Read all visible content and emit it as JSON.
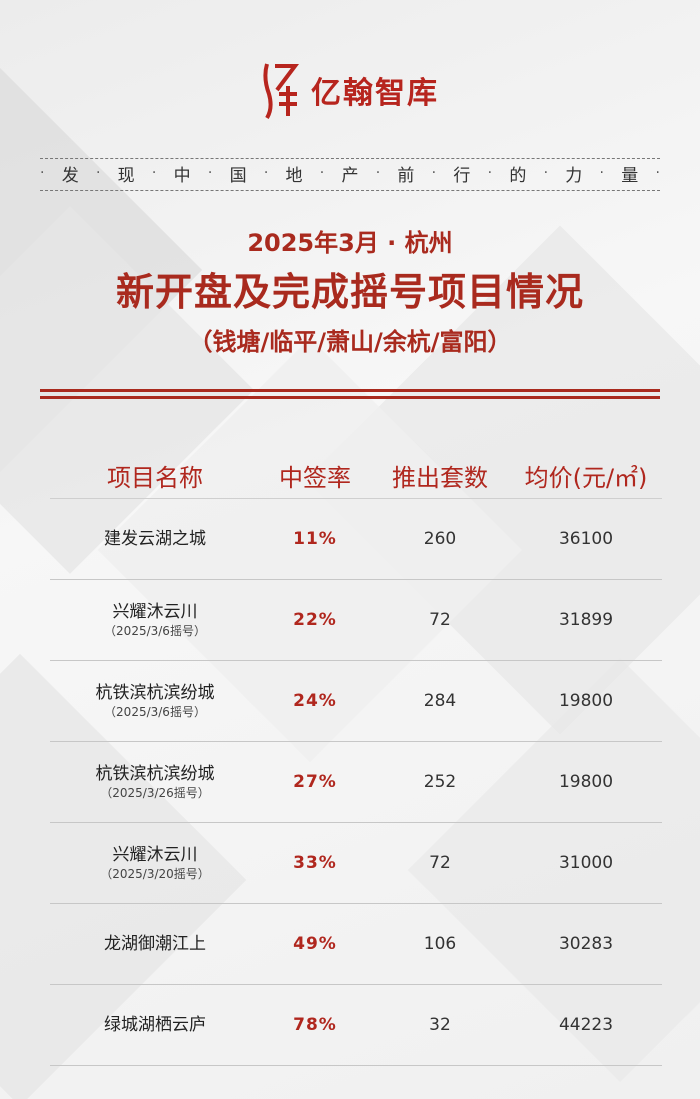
{
  "brand": {
    "name": "亿翰智库",
    "logo_glyphs": "亿翰",
    "accent": "#a92a1e"
  },
  "tagline": [
    "发",
    "现",
    "中",
    "国",
    "地",
    "产",
    "前",
    "行",
    "的",
    "力",
    "量"
  ],
  "title": {
    "line1": "2025年3月 · 杭州",
    "line2": "新开盘及完成摇号项目情况",
    "line3": "（钱塘/临平/萧山/余杭/富阳）"
  },
  "table": {
    "headers": [
      "项目名称",
      "中签率",
      "推出套数",
      "均价(元/㎡)"
    ],
    "rows": [
      {
        "name": "建发云湖之城",
        "sub": "",
        "rate": "11%",
        "units": "260",
        "price": "36100"
      },
      {
        "name": "兴耀沐云川",
        "sub": "（2025/3/6摇号）",
        "rate": "22%",
        "units": "72",
        "price": "31899"
      },
      {
        "name": "杭铁滨杭滨纷城",
        "sub": "（2025/3/6摇号）",
        "rate": "24%",
        "units": "284",
        "price": "19800"
      },
      {
        "name": "杭铁滨杭滨纷城",
        "sub": "（2025/3/26摇号）",
        "rate": "27%",
        "units": "252",
        "price": "19800"
      },
      {
        "name": "兴耀沐云川",
        "sub": "（2025/3/20摇号）",
        "rate": "33%",
        "units": "72",
        "price": "31000"
      },
      {
        "name": "龙湖御潮江上",
        "sub": "",
        "rate": "49%",
        "units": "106",
        "price": "30283"
      },
      {
        "name": "绿城湖栖云庐",
        "sub": "",
        "rate": "78%",
        "units": "32",
        "price": "44223"
      }
    ]
  }
}
